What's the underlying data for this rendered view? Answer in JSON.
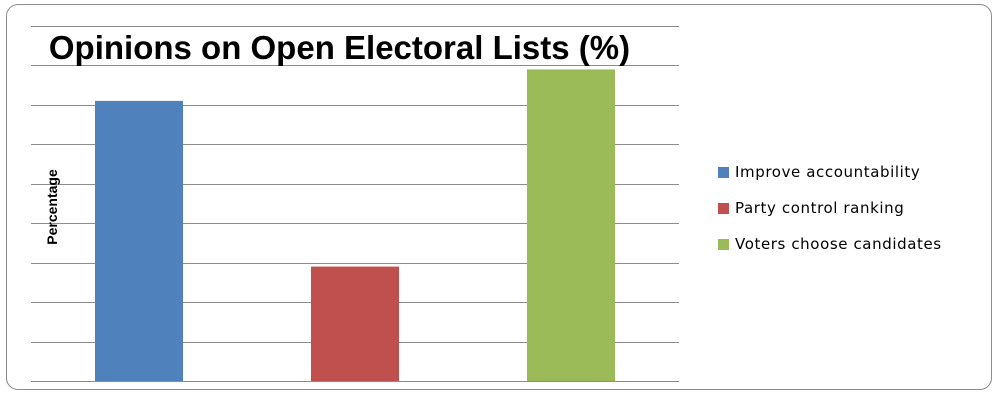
{
  "chart_data": {
    "type": "bar",
    "title": "Opinions on Open Electoral Lists (%)",
    "xlabel": "",
    "ylabel": "Percentage",
    "categories": [
      "Improve accountability",
      "Party control ranking",
      "Voters choose candidates"
    ],
    "values": [
      71,
      29,
      79
    ],
    "colors": [
      "#4f81bd",
      "#c0504d",
      "#9bbb59"
    ],
    "ylim": [
      0,
      90
    ],
    "grid_step": 10,
    "grid": true,
    "legend_position": "right"
  }
}
